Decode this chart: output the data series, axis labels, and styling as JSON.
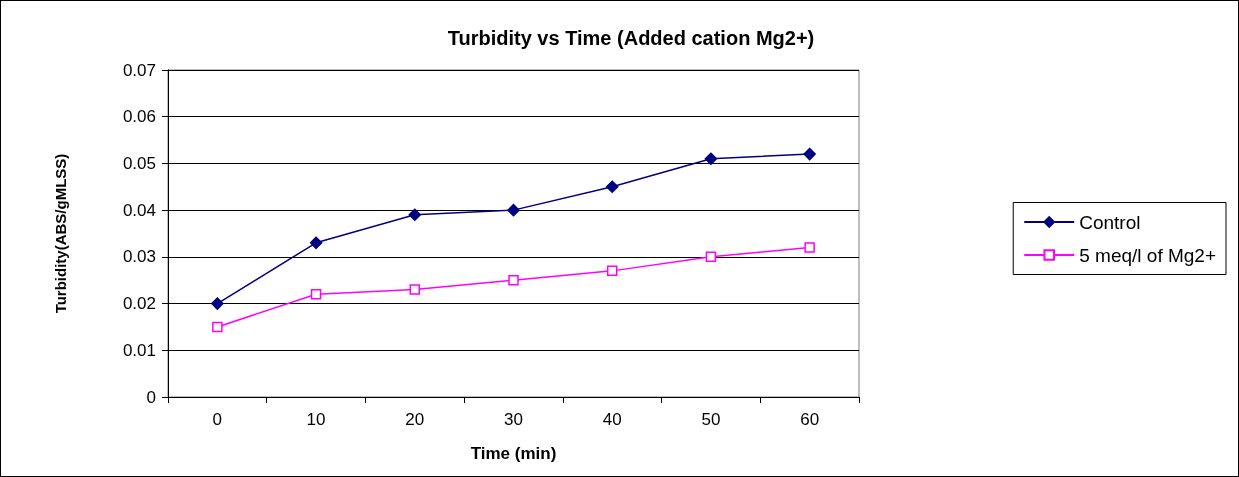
{
  "chart_data": {
    "type": "line",
    "title": "Turbidity vs Time (Added cation Mg2+)",
    "xlabel": "Time (min)",
    "ylabel": "Turbidity(ABS/gMLSS)",
    "categories": [
      "0",
      "10",
      "20",
      "30",
      "40",
      "50",
      "60"
    ],
    "series": [
      {
        "name": "Control",
        "color": "#000080",
        "marker": "diamond",
        "values": [
          0.02,
          0.033,
          0.039,
          0.04,
          0.045,
          0.051,
          0.052
        ]
      },
      {
        "name": "5 meq/l of Mg2+",
        "color": "#ff00ff",
        "marker": "square",
        "values": [
          0.015,
          0.022,
          0.023,
          0.025,
          0.027,
          0.03,
          0.032
        ]
      }
    ],
    "ylim": [
      0,
      0.07
    ],
    "yticks": [
      0,
      0.01,
      0.02,
      0.03,
      0.04,
      0.05,
      0.06,
      0.07
    ],
    "grid": "y",
    "legend": "right",
    "line_style": "solid"
  }
}
